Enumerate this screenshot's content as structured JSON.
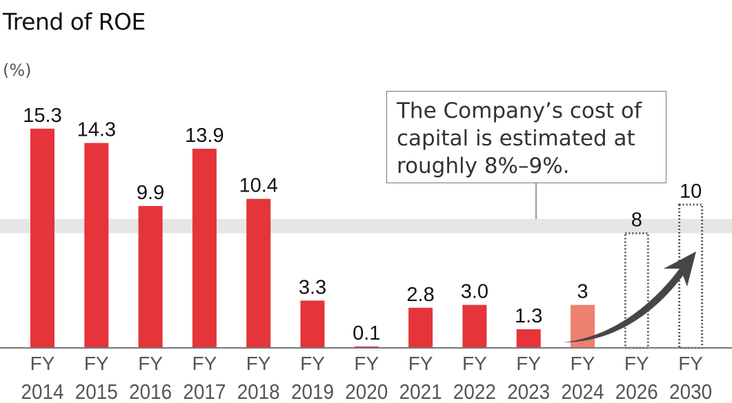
{
  "chart_data": {
    "type": "bar",
    "title": "Trend of ROE",
    "ylabel": "(%)",
    "ylim": [
      0,
      17
    ],
    "grid": false,
    "categories": [
      [
        "FY",
        "2014"
      ],
      [
        "FY",
        "2015"
      ],
      [
        "FY",
        "2016"
      ],
      [
        "FY",
        "2017"
      ],
      [
        "FY",
        "2018"
      ],
      [
        "FY",
        "2019"
      ],
      [
        "FY",
        "2020"
      ],
      [
        "FY",
        "2021"
      ],
      [
        "FY",
        "2022"
      ],
      [
        "FY",
        "2023"
      ],
      [
        "FY",
        "2024"
      ],
      [
        "FY",
        "2026"
      ],
      [
        "FY",
        "2030"
      ]
    ],
    "values": [
      15.3,
      14.3,
      9.9,
      13.9,
      10.4,
      3.3,
      0.1,
      2.8,
      3.0,
      1.3,
      3,
      8,
      10
    ],
    "value_labels": [
      "15.3",
      "14.3",
      "9.9",
      "13.9",
      "10.4",
      "3.3",
      "0.1",
      "2.8",
      "3.0",
      "1.3",
      "3",
      "8",
      "10"
    ],
    "bar_styles": [
      "actual",
      "actual",
      "actual",
      "actual",
      "actual",
      "actual",
      "actual",
      "actual",
      "actual",
      "actual",
      "forecast",
      "target",
      "target"
    ],
    "cost_of_capital_band": [
      8,
      9
    ],
    "annotation": "The Company’s cost of capital is estimated at roughly 8%–9%.",
    "annotation_lines": [
      "The Company’s cost of",
      "capital is estimated at",
      "roughly 8%–9%."
    ],
    "colors": {
      "actual": "#e5343a",
      "forecast": "#ee8070",
      "target_outline": "#555555",
      "band": "#e6e6e6",
      "arrow": "#484545",
      "axis": "#777777"
    }
  }
}
